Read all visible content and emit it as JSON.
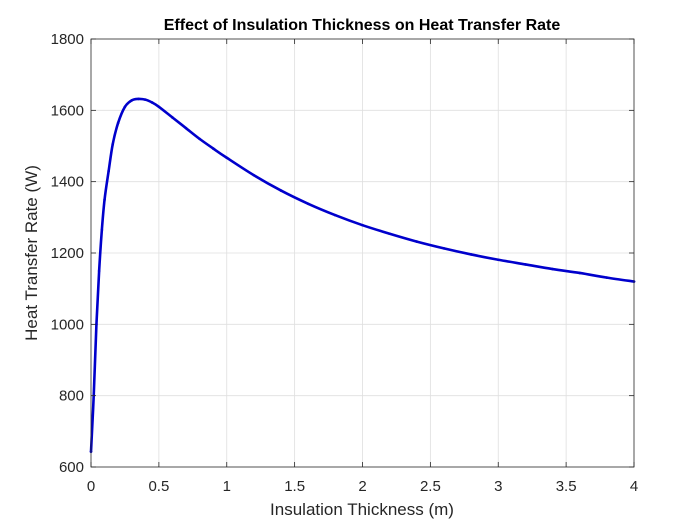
{
  "chart_data": {
    "type": "line",
    "title": "Effect of Insulation Thickness on Heat Transfer Rate",
    "xlabel": "Insulation Thickness (m)",
    "ylabel": "Heat Transfer Rate (W)",
    "xlim": [
      0,
      4
    ],
    "ylim": [
      600,
      1800
    ],
    "xticks": [
      0,
      0.5,
      1,
      1.5,
      2,
      2.5,
      3,
      3.5,
      4
    ],
    "xtick_labels": [
      "0",
      "0.5",
      "1",
      "1.5",
      "2",
      "2.5",
      "3",
      "3.5",
      "4"
    ],
    "yticks": [
      600,
      800,
      1000,
      1200,
      1400,
      1600,
      1800
    ],
    "ytick_labels": [
      "600",
      "800",
      "1000",
      "1200",
      "1400",
      "1600",
      "1800"
    ],
    "grid": true,
    "series": [
      {
        "color": "#0000cc",
        "x": [
          0,
          0.02,
          0.04,
          0.06,
          0.08,
          0.1,
          0.13,
          0.16,
          0.2,
          0.25,
          0.3,
          0.35,
          0.4,
          0.45,
          0.5,
          0.6,
          0.7,
          0.8,
          0.9,
          1.0,
          1.2,
          1.4,
          1.6,
          1.8,
          2.0,
          2.2,
          2.4,
          2.6,
          2.8,
          3.0,
          3.2,
          3.4,
          3.6,
          3.8,
          4.0
        ],
        "y": [
          643,
          800,
          1000,
          1150,
          1265,
          1350,
          1430,
          1505,
          1565,
          1610,
          1628,
          1632,
          1630,
          1622,
          1610,
          1580,
          1550,
          1520,
          1493,
          1467,
          1418,
          1375,
          1338,
          1306,
          1278,
          1254,
          1232,
          1213,
          1196,
          1181,
          1168,
          1155,
          1144,
          1131,
          1120
        ]
      }
    ]
  }
}
